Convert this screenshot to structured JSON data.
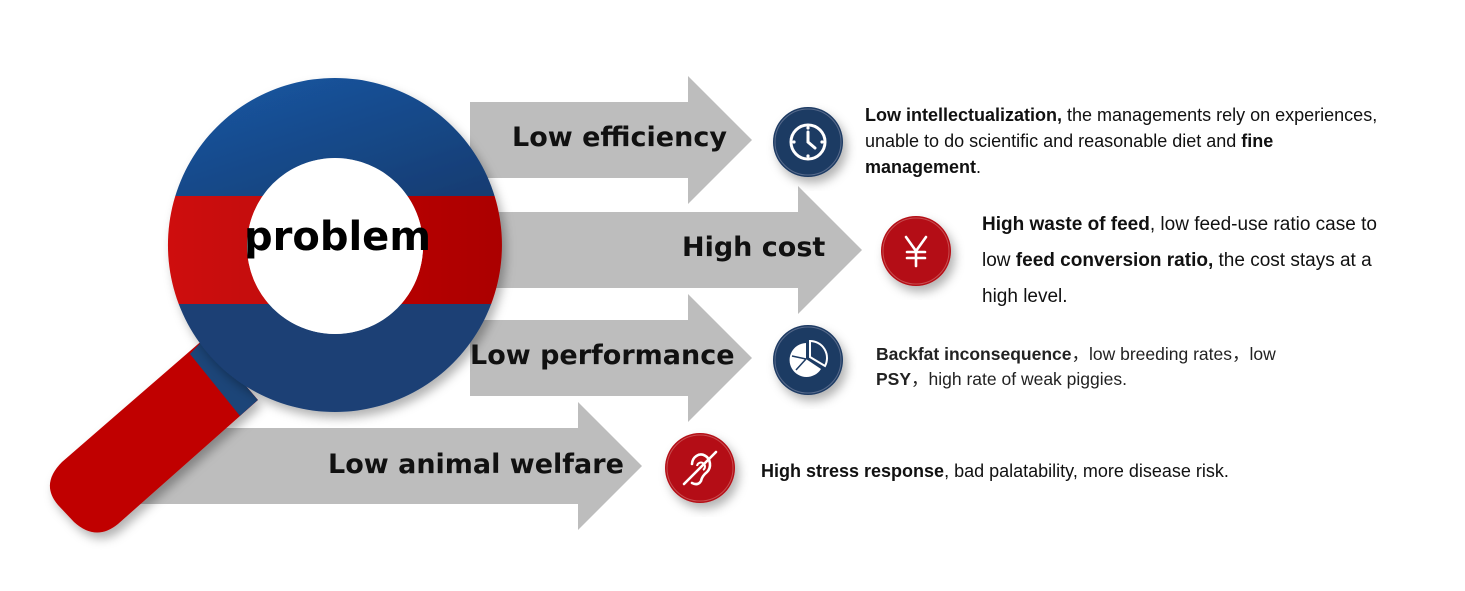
{
  "center": {
    "label": "problem"
  },
  "colors": {
    "blue": "#1b4f8f",
    "red": "#c00000",
    "arrow": "#bdbdbd",
    "badge_blue": "#1f3a64",
    "badge_red": "#b40f14"
  },
  "problems": [
    {
      "label": "Low efficiency",
      "icon": "clock-icon",
      "desc": [
        {
          "t": "Low intellectualization,",
          "b": true
        },
        {
          "t": " the managements rely on experiences, unable to do scientific and reasonable diet and ",
          "b": false
        },
        {
          "t": "fine management",
          "b": true
        },
        {
          "t": ".",
          "b": false
        }
      ]
    },
    {
      "label": "High cost",
      "icon": "yen-icon",
      "desc": [
        {
          "t": "High waste of feed",
          "b": true
        },
        {
          "t": ", low feed-use ratio case to low ",
          "b": false
        },
        {
          "t": "feed conversion ratio,",
          "b": true
        },
        {
          "t": " the cost stays at a high level.",
          "b": false
        }
      ]
    },
    {
      "label": "Low performance",
      "icon": "pie-chart-icon",
      "desc": [
        {
          "t": "Backfat inconsequence",
          "b": true
        },
        {
          "t": "，low breeding rates，low ",
          "b": false
        },
        {
          "t": "PSY",
          "b": true
        },
        {
          "t": "，high rate of weak piggies.",
          "b": false
        }
      ]
    },
    {
      "label": "Low animal welfare",
      "icon": "no-hearing-icon",
      "desc": [
        {
          "t": "High stress response",
          "b": true
        },
        {
          "t": ", bad palatability, more disease risk.",
          "b": false
        }
      ]
    }
  ]
}
